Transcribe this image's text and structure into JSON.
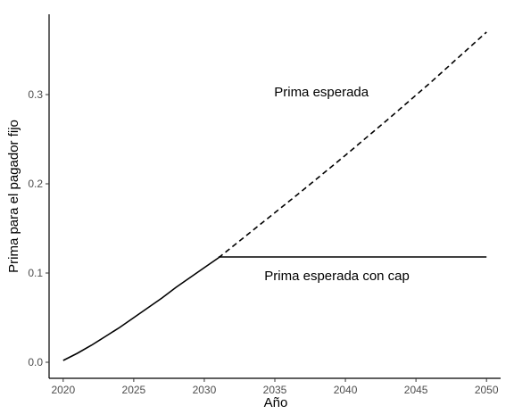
{
  "chart_data": {
    "type": "line",
    "title": "",
    "xlabel": "Año",
    "ylabel": "Prima para el pagador fijo",
    "xlim": [
      2019.0,
      2051.0
    ],
    "ylim": [
      -0.018,
      0.39
    ],
    "xticks": [
      2020,
      2025,
      2030,
      2035,
      2040,
      2045,
      2050
    ],
    "yticks": [
      0.0,
      0.1,
      0.2,
      0.3
    ],
    "ytick_labels": [
      "0.0",
      "0.1",
      "0.2",
      "0.3"
    ],
    "grid": false,
    "series": [
      {
        "style": "solid",
        "x": [
          2020,
          2021,
          2022,
          2023,
          2024,
          2025,
          2026,
          2027,
          2028,
          2029,
          2030,
          2031
        ],
        "y": [
          0.002,
          0.01,
          0.019,
          0.029,
          0.039,
          0.05,
          0.061,
          0.072,
          0.084,
          0.095,
          0.106,
          0.117
        ]
      },
      {
        "style": "dashed",
        "x": [
          2031,
          2034,
          2037,
          2040,
          2043,
          2046,
          2050
        ],
        "y": [
          0.117,
          0.155,
          0.193,
          0.232,
          0.272,
          0.313,
          0.37
        ]
      },
      {
        "style": "solid",
        "x": [
          2031,
          2050
        ],
        "y": [
          0.118,
          0.118
        ]
      }
    ],
    "annotations": [
      {
        "text": "Prima esperada",
        "x": 2038.3,
        "y": 0.298
      },
      {
        "text": "Prima esperada con cap",
        "x": 2039.4,
        "y": 0.092
      }
    ]
  }
}
